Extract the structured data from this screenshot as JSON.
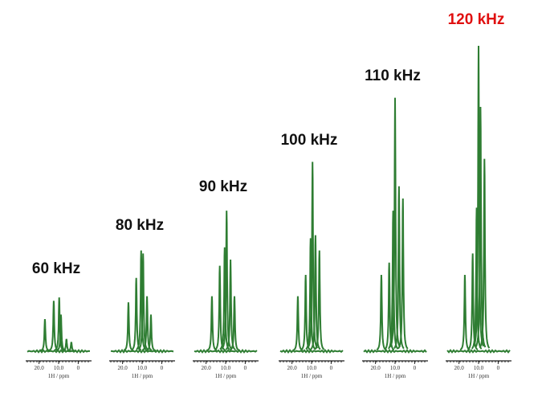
{
  "chart_data": [
    {
      "type": "spectrum",
      "title": "60 kHz",
      "title_color": "#111111",
      "x_label": "1H / ppm",
      "color": "#2e7d32",
      "xlim": [
        26,
        -6
      ],
      "xticks": [
        {
          "value": 20,
          "label": "20.0"
        },
        {
          "value": 10,
          "label": "10.0"
        },
        0
      ],
      "x": [
        17,
        12.5,
        9.7,
        8.8,
        6,
        3.5
      ],
      "values": [
        10.5,
        16.5,
        17.6,
        12,
        4,
        3
      ]
    },
    {
      "type": "spectrum",
      "title": "80 kHz",
      "title_color": "#111111",
      "x_label": "1H / ppm",
      "color": "#2e7d32",
      "xlim": [
        26,
        -6
      ],
      "xticks": [
        {
          "value": 20,
          "label": "20.0"
        },
        {
          "value": 10,
          "label": "10.0"
        },
        0
      ],
      "x": [
        17,
        13,
        10.5,
        9.5,
        7.5,
        5.5
      ],
      "values": [
        16,
        24,
        33,
        32,
        18,
        12
      ]
    },
    {
      "type": "spectrum",
      "title": "90 kHz",
      "title_color": "#111111",
      "x_label": "1H / ppm",
      "color": "#2e7d32",
      "xlim": [
        26,
        -6
      ],
      "xticks": [
        {
          "value": 20,
          "label": "20.0"
        },
        {
          "value": 10,
          "label": "10.0"
        },
        0
      ],
      "x": [
        17,
        13,
        10.5,
        9.5,
        7.5,
        5.5
      ],
      "values": [
        18,
        28,
        34,
        46,
        30,
        18
      ]
    },
    {
      "type": "spectrum",
      "title": "100 kHz",
      "title_color": "#111111",
      "x_label": "1H / ppm",
      "color": "#2e7d32",
      "xlim": [
        26,
        -6
      ],
      "xticks": [
        {
          "value": 20,
          "label": "20.0"
        },
        {
          "value": 10,
          "label": "10.0"
        },
        0
      ],
      "x": [
        17,
        13,
        10.5,
        9.5,
        8,
        6
      ],
      "values": [
        18,
        25,
        37,
        62,
        38,
        33
      ]
    },
    {
      "type": "spectrum",
      "title": "110 kHz",
      "title_color": "#111111",
      "x_label": "1H / ppm",
      "color": "#2e7d32",
      "xlim": [
        26,
        -6
      ],
      "xticks": [
        {
          "value": 20,
          "label": "20.0"
        },
        {
          "value": 10,
          "label": "10.0"
        },
        0
      ],
      "x": [
        17,
        13,
        11,
        10,
        8,
        6
      ],
      "values": [
        25,
        29,
        46,
        83,
        54,
        50
      ]
    },
    {
      "type": "spectrum",
      "title": "120 kHz",
      "title_color": "#e01010",
      "x_label": "1H / ppm",
      "color": "#2e7d32",
      "xlim": [
        26,
        -6
      ],
      "xticks": [
        {
          "value": 20,
          "label": "20.0"
        },
        {
          "value": 10,
          "label": "10.0"
        },
        0
      ],
      "x": [
        17,
        13,
        11,
        10,
        9,
        7
      ],
      "values": [
        25,
        32,
        47,
        100,
        80,
        63
      ]
    }
  ]
}
